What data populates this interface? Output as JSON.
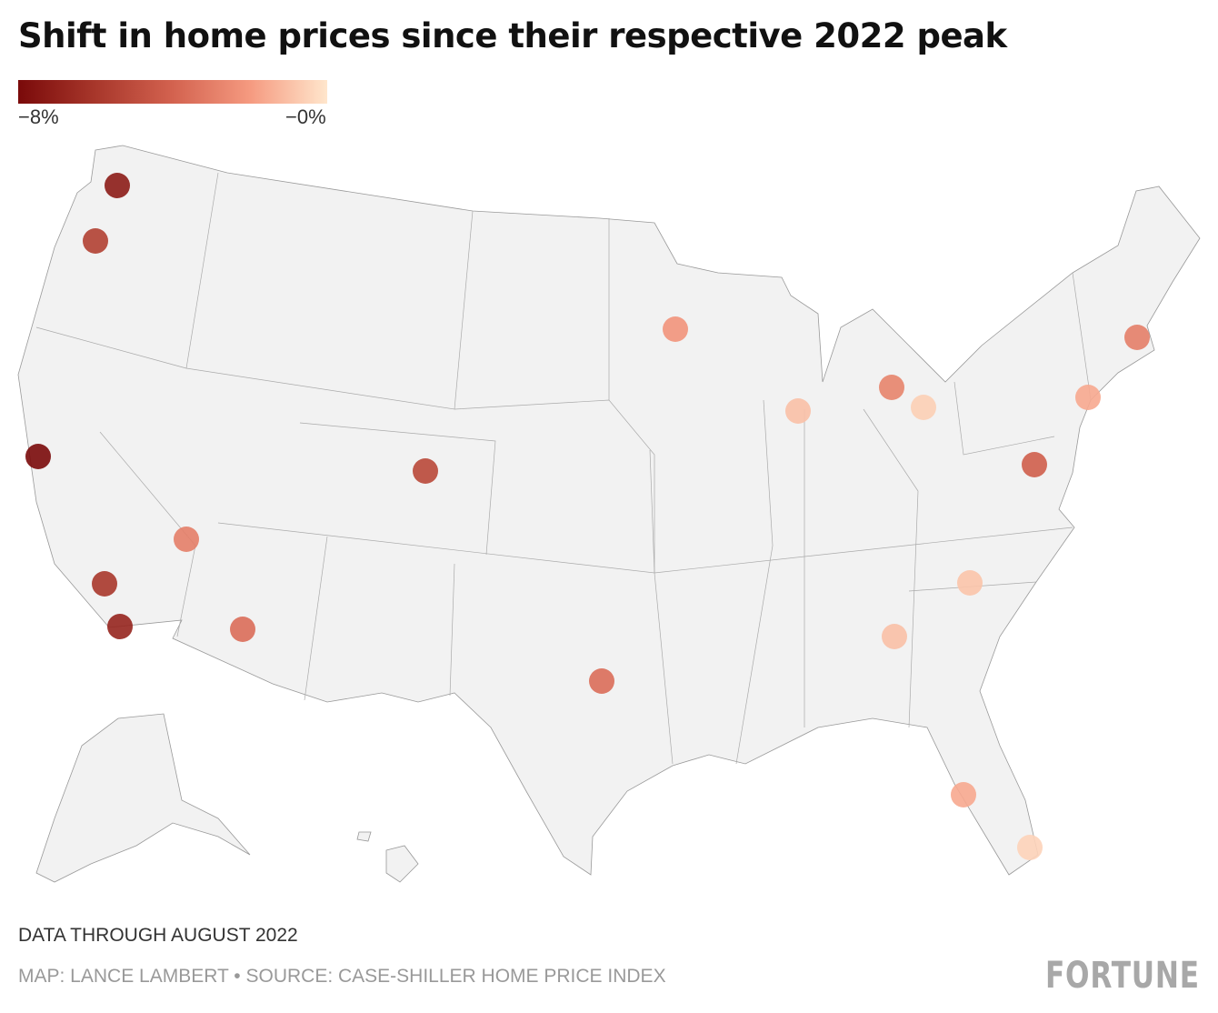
{
  "title": "Shift in home prices since their respective 2022 peak",
  "legend": {
    "min_label": "−8%",
    "max_label": "−0%",
    "min": -8,
    "max": 0,
    "colors": [
      "#7a0a0a",
      "#a8372b",
      "#d3624f",
      "#f59a80",
      "#ffe6cc"
    ]
  },
  "map_data": {
    "type": "proportional-point map",
    "region": "United States",
    "points": [
      {
        "value": -7.2
      },
      {
        "value": -5.6
      },
      {
        "value": -8.0
      },
      {
        "value": -3.0
      },
      {
        "value": -6.0
      },
      {
        "value": -6.8
      },
      {
        "value": -3.6
      },
      {
        "value": -5.2
      },
      {
        "value": -3.6
      },
      {
        "value": -2.2
      },
      {
        "value": -1.0
      },
      {
        "value": -2.8
      },
      {
        "value": -0.6
      },
      {
        "value": -3.0
      },
      {
        "value": -1.6
      },
      {
        "value": -4.2
      },
      {
        "value": -0.9
      },
      {
        "value": -1.0
      },
      {
        "value": -1.6
      },
      {
        "value": -0.5
      }
    ],
    "land_color": "#f2f2f2",
    "border_color": "#999999"
  },
  "footer": {
    "note": "DATA THROUGH AUGUST 2022",
    "credit": "MAP: LANCE LAMBERT • SOURCE: CASE-SHILLER HOME PRICE INDEX",
    "logo": "FORTUNE"
  }
}
